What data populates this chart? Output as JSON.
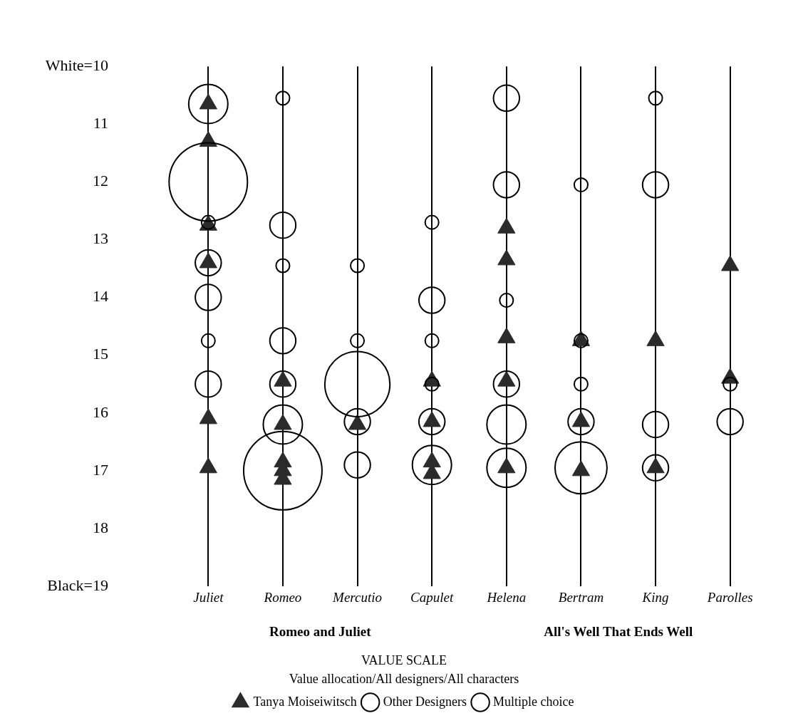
{
  "chart_data": {
    "type": "scatter",
    "title": "VALUE SCALE",
    "legend_title": "Value allocation/All designers/All characters",
    "categories": [
      "Juliet",
      "Romeo",
      "Mercutio",
      "Capulet",
      "Helena",
      "Bertram",
      "King",
      "Parolles"
    ],
    "ylim": [
      19,
      10
    ],
    "yticks": [
      {
        "value": 10,
        "label": "White=10"
      },
      11,
      12,
      13,
      14,
      15,
      16,
      17,
      18,
      {
        "value": 19,
        "label": "Black=19"
      }
    ],
    "grid": "x",
    "legend": "bottom",
    "annotations": [
      "Romeo and Juliet",
      "All's Well That Ends Well"
    ],
    "series": [
      {
        "name": "Multiple choice",
        "type": "bubble",
        "marker": "circle",
        "color": "#000000",
        "x": [
          "Juliet",
          "Juliet",
          "Juliet",
          "Juliet",
          "Juliet",
          "Romeo",
          "Romeo",
          "Romeo",
          "Romeo",
          "Romeo",
          "Mercutio",
          "Mercutio",
          "Mercutio",
          "Capulet",
          "Capulet",
          "Capulet",
          "Helena",
          "Helena",
          "Helena",
          "Helena",
          "Helena",
          "Bertram",
          "Bertram",
          "King",
          "King",
          "King",
          "Parolles"
        ],
        "values": [
          10.65,
          12.0,
          13.4,
          14.0,
          15.5,
          12.75,
          14.75,
          15.5,
          16.2,
          17.0,
          15.5,
          16.15,
          16.9,
          14.05,
          16.15,
          16.9,
          10.55,
          12.05,
          15.5,
          16.2,
          16.95,
          16.15,
          16.95,
          12.05,
          16.2,
          16.95,
          16.15
        ],
        "sizes": [
          0.25,
          1,
          0.11,
          0.11,
          0.11,
          0.11,
          0.11,
          0.11,
          0.25,
          1,
          0.69,
          0.11,
          0.11,
          0.11,
          0.11,
          0.25,
          0.11,
          0.11,
          0.11,
          0.25,
          0.25,
          0.11,
          0.44,
          0.11,
          0.11,
          0.11,
          0.11
        ]
      },
      {
        "name": "Other Designers",
        "type": "bubble",
        "marker": "circle",
        "color": "#000000",
        "x": [
          "Juliet",
          "Juliet",
          "Romeo",
          "Romeo",
          "Mercutio",
          "Mercutio",
          "Capulet",
          "Capulet",
          "Capulet",
          "Helena",
          "Bertram",
          "Bertram",
          "Bertram",
          "King",
          "Parolles"
        ],
        "values": [
          12.7,
          14.75,
          10.55,
          13.45,
          13.45,
          14.75,
          12.7,
          14.75,
          15.5,
          14.05,
          12.05,
          14.75,
          15.5,
          10.55,
          15.5
        ],
        "sizes": [
          0.03,
          0.03,
          0.03,
          0.03,
          0.03,
          0.03,
          0.03,
          0.03,
          0.03,
          0.03,
          0.03,
          0.03,
          0.03,
          0.03,
          0.03
        ]
      },
      {
        "name": "Tanya Moiseiwitsch",
        "marker": "triangle",
        "color": "#2b2b2b",
        "x": [
          "Juliet",
          "Juliet",
          "Juliet",
          "Juliet",
          "Juliet",
          "Juliet",
          "Romeo",
          "Romeo",
          "Romeo",
          "Romeo",
          "Romeo",
          "Mercutio",
          "Capulet",
          "Capulet",
          "Capulet",
          "Capulet",
          "Helena",
          "Helena",
          "Helena",
          "Helena",
          "Helena",
          "Bertram",
          "Bertram",
          "Bertram",
          "King",
          "King",
          "Parolles",
          "Parolles"
        ],
        "values": [
          10.65,
          11.3,
          12.75,
          13.4,
          16.1,
          16.95,
          15.45,
          16.2,
          16.85,
          17.0,
          17.15,
          16.2,
          15.45,
          16.15,
          16.85,
          17.05,
          12.8,
          13.35,
          14.7,
          15.45,
          16.95,
          14.75,
          16.15,
          17.0,
          14.75,
          16.95,
          13.45,
          15.4
        ]
      }
    ]
  }
}
